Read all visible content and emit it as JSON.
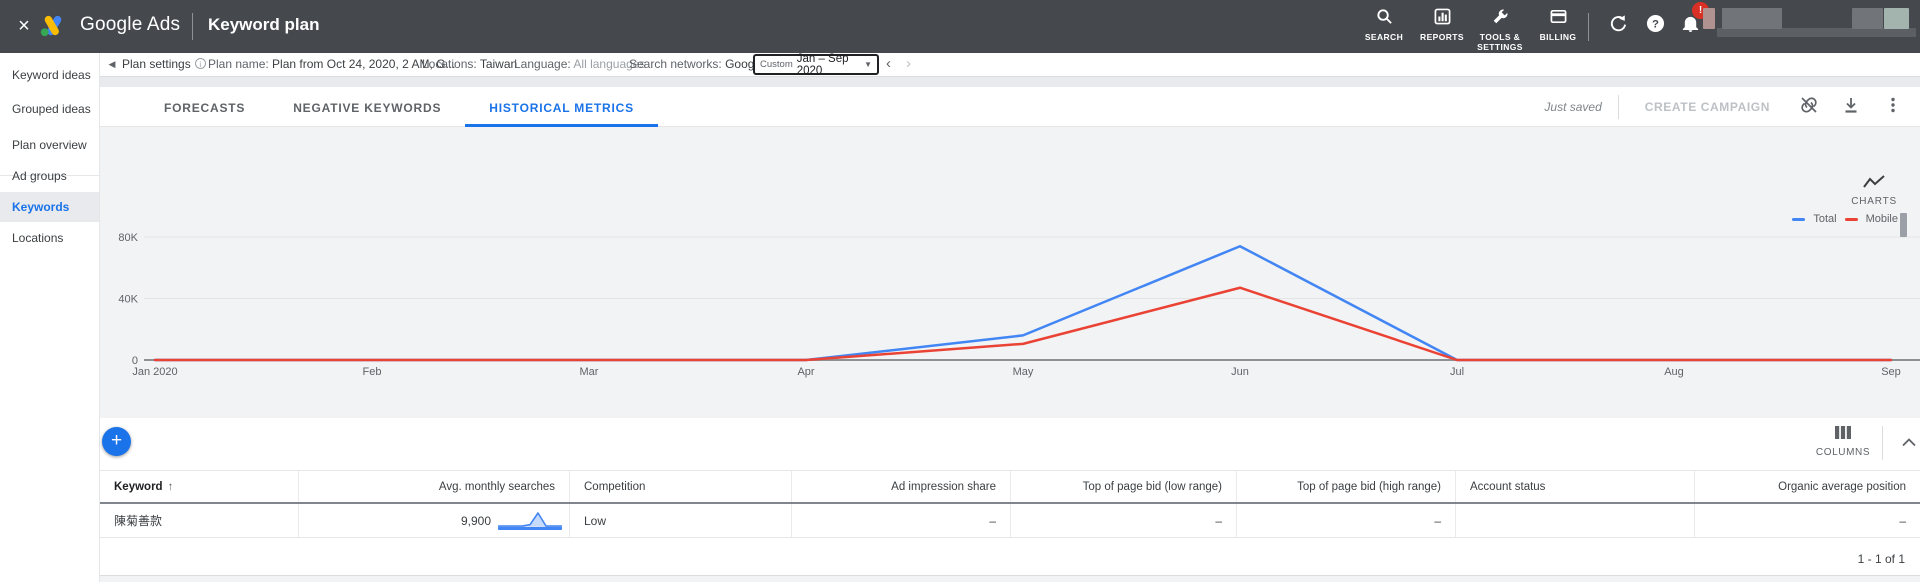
{
  "topbar": {
    "close": "×",
    "brand": "Google Ads",
    "title": "Keyword plan",
    "nav": [
      {
        "label": "SEARCH",
        "icon": "search-icon"
      },
      {
        "label": "REPORTS",
        "icon": "reports-icon"
      },
      {
        "label": "TOOLS & SETTINGS",
        "icon": "tools-icon"
      },
      {
        "label": "BILLING",
        "icon": "billing-icon"
      }
    ],
    "notification_badge": "!"
  },
  "settings_bar": {
    "plan_settings": "Plan settings",
    "plan_name_label": "Plan name:",
    "plan_name_value": "Plan from Oct 24, 2020, 2 AM, G...",
    "locations_label": "Locations:",
    "locations_value": "Taiwan",
    "language_label": "Language:",
    "language_value": "All languages",
    "networks_label": "Search networks:",
    "networks_value": "Google",
    "date_range_type": "Custom",
    "date_range_value": "Jan – Sep 2020"
  },
  "sidebar": {
    "items": [
      {
        "label": "Keyword ideas"
      },
      {
        "label": "Grouped ideas"
      },
      {
        "label": "Plan overview"
      },
      {
        "label": "Ad groups"
      },
      {
        "label": "Keywords"
      },
      {
        "label": "Locations"
      }
    ],
    "selected": "Keywords"
  },
  "tabs": [
    {
      "label": "FORECASTS"
    },
    {
      "label": "NEGATIVE KEYWORDS"
    },
    {
      "label": "HISTORICAL METRICS"
    }
  ],
  "active_tab": "HISTORICAL METRICS",
  "toolbar": {
    "saved_status": "Just saved",
    "create_campaign_label": "CREATE CAMPAIGN"
  },
  "chart_header": {
    "charts_label": "CHARTS"
  },
  "chart_data": {
    "type": "line",
    "categories": [
      "Jan 2020",
      "Feb",
      "Mar",
      "Apr",
      "May",
      "Jun",
      "Jul",
      "Aug",
      "Sep"
    ],
    "series": [
      {
        "name": "Total",
        "color": "#4285f4",
        "values": [
          0,
          0,
          0,
          0,
          16000,
          74000,
          0,
          0,
          0
        ]
      },
      {
        "name": "Mobile",
        "color": "#ea4335",
        "values": [
          0,
          0,
          0,
          0,
          10500,
          47000,
          0,
          0,
          0
        ]
      }
    ],
    "ylim": [
      0,
      80000
    ],
    "yticks": [
      {
        "value": 0,
        "label": "0"
      },
      {
        "value": 40000,
        "label": "40K"
      },
      {
        "value": 80000,
        "label": "80K"
      }
    ],
    "grid": true,
    "legend_position": "top-right"
  },
  "table_toolbar": {
    "columns_label": "COLUMNS"
  },
  "table": {
    "columns": [
      {
        "label": "Keyword",
        "align": "left",
        "sort": "asc"
      },
      {
        "label": "Avg. monthly searches",
        "align": "right"
      },
      {
        "label": "Competition",
        "align": "left"
      },
      {
        "label": "Ad impression share",
        "align": "right"
      },
      {
        "label": "Top of page bid (low range)",
        "align": "right"
      },
      {
        "label": "Top of page bid (high range)",
        "align": "right"
      },
      {
        "label": "Account status",
        "align": "left"
      },
      {
        "label": "Organic average position",
        "align": "right"
      }
    ],
    "sort_arrow": "↑",
    "rows": [
      {
        "keyword": "陳菊善款",
        "avg_monthly_searches": "9,900",
        "sparkline": [
          0,
          0,
          0,
          0,
          1,
          10,
          0,
          0,
          0
        ],
        "competition": "Low",
        "ad_impression_share": "–",
        "top_of_page_bid_low": "–",
        "top_of_page_bid_high": "–",
        "account_status": "",
        "organic_average_position": "–"
      }
    ]
  },
  "pagination": {
    "label": "1 - 1 of 1"
  },
  "colors": {
    "accent_blue": "#1a73e8",
    "chart_total": "#4285f4",
    "chart_mobile": "#ea4335",
    "topbar_bg": "#45494e",
    "chart_bg": "#f1f3f4"
  }
}
